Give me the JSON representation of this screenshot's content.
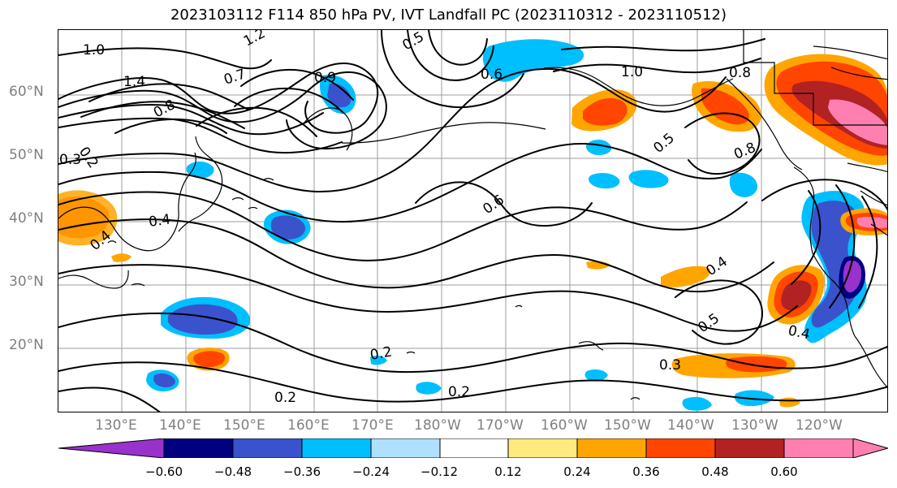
{
  "title": "2023103112 F114 850 hPa PV, IVT Landfall PC (2023110312 - 2023110512)",
  "map": {
    "lat_labels": [
      {
        "label": "60°N"
      },
      {
        "label": "50°N"
      },
      {
        "label": "40°N"
      },
      {
        "label": "30°N"
      },
      {
        "label": "20°N"
      }
    ],
    "lon_labels": [
      {
        "label": "130°E"
      },
      {
        "label": "140°E"
      },
      {
        "label": "150°E"
      },
      {
        "label": "160°E"
      },
      {
        "label": "170°E"
      },
      {
        "label": "180°W"
      },
      {
        "label": "170°W"
      },
      {
        "label": "160°W"
      },
      {
        "label": "150°W"
      },
      {
        "label": "140°W"
      },
      {
        "label": "130°W"
      },
      {
        "label": "120°W"
      }
    ],
    "contour_labels": [
      {
        "text": "1.0"
      },
      {
        "text": "1.2"
      },
      {
        "text": "1.4"
      },
      {
        "text": "0.7"
      },
      {
        "text": "0.8"
      },
      {
        "text": "0.3"
      },
      {
        "text": "0.2"
      },
      {
        "text": "0.4"
      },
      {
        "text": "0.5"
      },
      {
        "text": "0.6"
      },
      {
        "text": "0.9"
      },
      {
        "text": "0.2"
      },
      {
        "text": "0.4"
      },
      {
        "text": "0.2"
      },
      {
        "text": "0.2"
      },
      {
        "text": "0.6"
      },
      {
        "text": "1.0"
      },
      {
        "text": "0.8"
      },
      {
        "text": "0.5"
      },
      {
        "text": "0.8"
      },
      {
        "text": "0.4"
      },
      {
        "text": "0.5"
      },
      {
        "text": "0.4"
      },
      {
        "text": "0.3"
      }
    ]
  },
  "colorbar": {
    "colors": [
      "#9932CC",
      "#000080",
      "#3A53CC",
      "#00BFFF",
      "#B0E0FF",
      "#FFFFFF",
      "#FFEA80",
      "#FFA500",
      "#FF4500",
      "#B22222",
      "#FF7FB0",
      "#FF7FB0"
    ],
    "ticks": [
      "−0.60",
      "−0.48",
      "−0.36",
      "−0.24",
      "−0.12",
      "0.12",
      "0.24",
      "0.36",
      "0.48",
      "0.60"
    ]
  }
}
